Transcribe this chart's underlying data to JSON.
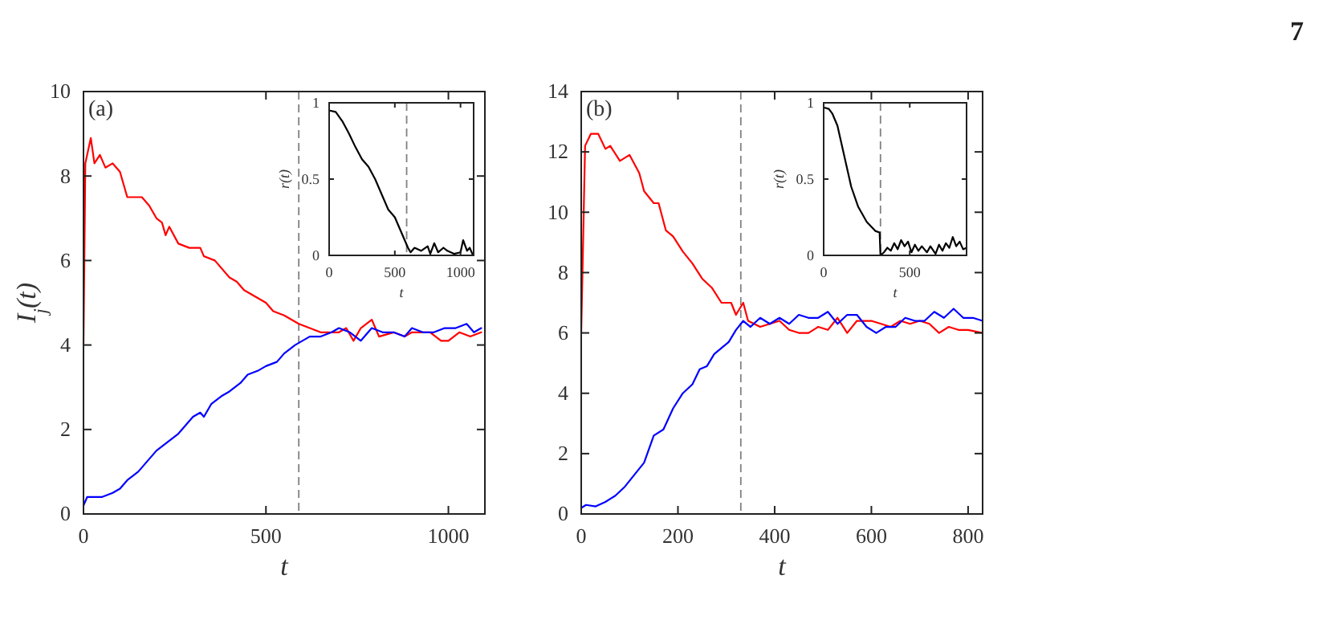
{
  "chart_data": [
    {
      "type": "line",
      "xlabel": "t",
      "ylabel": "I$_{j}$(t)",
      "xlim": [
        0,
        1100
      ],
      "ylim": [
        0,
        10
      ],
      "xticks": [
        0,
        500,
        1000
      ],
      "yticks": [
        0,
        2,
        4,
        6,
        8,
        10
      ],
      "grid": false,
      "annotations": [
        "(a)",
        "7"
      ],
      "ref_lines": [
        {
          "axis": "x",
          "value": 590,
          "color": "#808080",
          "line_style": "dashed"
        }
      ],
      "series": [
        {
          "color": "#ff0000",
          "x": [
            0,
            5,
            20,
            30,
            45,
            60,
            80,
            100,
            120,
            150,
            160,
            180,
            200,
            215,
            225,
            235,
            260,
            290,
            320,
            330,
            360,
            400,
            420,
            440,
            460,
            480,
            500,
            520,
            550,
            590,
            620,
            650,
            700,
            720,
            740,
            760,
            790,
            810,
            850,
            880,
            900,
            950,
            980,
            1000,
            1030,
            1060,
            1090
          ],
          "values": [
            4.0,
            8.3,
            8.9,
            8.3,
            8.5,
            8.2,
            8.3,
            8.1,
            7.5,
            7.5,
            7.5,
            7.3,
            7.0,
            6.9,
            6.6,
            6.8,
            6.4,
            6.3,
            6.3,
            6.1,
            6.0,
            5.6,
            5.5,
            5.3,
            5.2,
            5.1,
            5.0,
            4.8,
            4.7,
            4.5,
            4.4,
            4.3,
            4.3,
            4.4,
            4.1,
            4.4,
            4.6,
            4.2,
            4.3,
            4.2,
            4.3,
            4.3,
            4.1,
            4.1,
            4.3,
            4.2,
            4.3
          ]
        },
        {
          "color": "#0000ff",
          "x": [
            0,
            10,
            30,
            50,
            80,
            100,
            120,
            150,
            180,
            200,
            230,
            260,
            280,
            300,
            320,
            330,
            350,
            380,
            400,
            430,
            450,
            480,
            500,
            530,
            550,
            580,
            600,
            620,
            650,
            680,
            700,
            730,
            760,
            790,
            820,
            850,
            880,
            900,
            930,
            960,
            990,
            1020,
            1050,
            1070,
            1090
          ],
          "values": [
            0.2,
            0.4,
            0.4,
            0.4,
            0.5,
            0.6,
            0.8,
            1.0,
            1.3,
            1.5,
            1.7,
            1.9,
            2.1,
            2.3,
            2.4,
            2.3,
            2.6,
            2.8,
            2.9,
            3.1,
            3.3,
            3.4,
            3.5,
            3.6,
            3.8,
            4.0,
            4.1,
            4.2,
            4.2,
            4.3,
            4.4,
            4.3,
            4.1,
            4.4,
            4.3,
            4.3,
            4.2,
            4.4,
            4.3,
            4.3,
            4.4,
            4.4,
            4.5,
            4.3,
            4.4
          ]
        }
      ]
    },
    {
      "type": "line",
      "xlabel": "t",
      "ylabel": "r(t)",
      "xlim": [
        0,
        1100
      ],
      "ylim": [
        0,
        1
      ],
      "xticks": [
        0,
        500,
        1000
      ],
      "yticks": [
        0,
        0.5,
        1
      ],
      "grid": false,
      "ref_lines": [
        {
          "axis": "x",
          "value": 590,
          "color": "#808080",
          "line_style": "dashed"
        }
      ],
      "series": [
        {
          "color": "#000000",
          "x": [
            0,
            50,
            100,
            150,
            200,
            250,
            300,
            350,
            400,
            450,
            500,
            550,
            600,
            620,
            650,
            700,
            750,
            770,
            800,
            830,
            870,
            900,
            950,
            1000,
            1020,
            1050,
            1070,
            1090
          ],
          "values": [
            0.95,
            0.94,
            0.88,
            0.8,
            0.71,
            0.63,
            0.58,
            0.5,
            0.4,
            0.3,
            0.25,
            0.15,
            0.05,
            0.02,
            0.05,
            0.03,
            0.06,
            0.01,
            0.08,
            0.02,
            0.05,
            0.03,
            0.01,
            0.02,
            0.1,
            0.03,
            0.05,
            0.01
          ]
        }
      ]
    },
    {
      "type": "line",
      "xlabel": "t",
      "xlim": [
        0,
        830
      ],
      "ylim": [
        0,
        14
      ],
      "xticks": [
        0,
        200,
        400,
        600,
        800
      ],
      "yticks": [
        0,
        2,
        4,
        6,
        8,
        10,
        12,
        14
      ],
      "grid": false,
      "annotations": [
        "(b)"
      ],
      "ref_lines": [
        {
          "axis": "x",
          "value": 330,
          "color": "#808080",
          "line_style": "dashed"
        }
      ],
      "series": [
        {
          "color": "#ff0000",
          "x": [
            0,
            8,
            20,
            35,
            50,
            60,
            80,
            100,
            120,
            130,
            150,
            160,
            175,
            190,
            210,
            230,
            250,
            270,
            290,
            310,
            320,
            335,
            345,
            370,
            390,
            410,
            430,
            450,
            470,
            490,
            510,
            530,
            550,
            570,
            600,
            620,
            640,
            660,
            680,
            700,
            720,
            740,
            760,
            780,
            800,
            830
          ],
          "values": [
            6.0,
            12.2,
            12.6,
            12.6,
            12.1,
            12.2,
            11.7,
            11.9,
            11.3,
            10.7,
            10.3,
            10.3,
            9.4,
            9.2,
            8.7,
            8.3,
            7.8,
            7.5,
            7.0,
            7.0,
            6.6,
            7.0,
            6.4,
            6.2,
            6.3,
            6.4,
            6.1,
            6.0,
            6.0,
            6.2,
            6.1,
            6.5,
            6.0,
            6.4,
            6.4,
            6.3,
            6.2,
            6.4,
            6.3,
            6.4,
            6.3,
            6.0,
            6.2,
            6.1,
            6.1,
            6.0
          ]
        },
        {
          "color": "#0000ff",
          "x": [
            0,
            10,
            30,
            50,
            70,
            90,
            110,
            130,
            150,
            170,
            190,
            210,
            230,
            245,
            260,
            275,
            290,
            305,
            320,
            335,
            350,
            370,
            390,
            410,
            430,
            450,
            470,
            490,
            510,
            530,
            550,
            570,
            590,
            610,
            630,
            650,
            670,
            690,
            710,
            730,
            750,
            770,
            790,
            810,
            830
          ],
          "values": [
            0.2,
            0.3,
            0.25,
            0.4,
            0.6,
            0.9,
            1.3,
            1.7,
            2.6,
            2.8,
            3.5,
            4.0,
            4.3,
            4.8,
            4.9,
            5.3,
            5.5,
            5.7,
            6.1,
            6.4,
            6.2,
            6.5,
            6.3,
            6.5,
            6.3,
            6.6,
            6.5,
            6.5,
            6.7,
            6.3,
            6.6,
            6.6,
            6.2,
            6.0,
            6.2,
            6.2,
            6.5,
            6.4,
            6.4,
            6.7,
            6.5,
            6.8,
            6.5,
            6.5,
            6.4
          ]
        }
      ]
    },
    {
      "type": "line",
      "xlabel": "t",
      "ylabel": "r(t)",
      "xlim": [
        0,
        830
      ],
      "ylim": [
        0,
        1
      ],
      "xticks": [
        0,
        500
      ],
      "yticks": [
        0,
        0.5,
        1
      ],
      "grid": false,
      "ref_lines": [
        {
          "axis": "x",
          "value": 330,
          "color": "#808080",
          "line_style": "dashed"
        }
      ],
      "series": [
        {
          "color": "#000000",
          "x": [
            0,
            30,
            50,
            80,
            100,
            130,
            160,
            200,
            250,
            300,
            325,
            330,
            350,
            370,
            390,
            410,
            430,
            450,
            470,
            490,
            510,
            530,
            550,
            570,
            600,
            620,
            650,
            670,
            690,
            710,
            730,
            750,
            770,
            790,
            810,
            830
          ],
          "values": [
            0.97,
            0.96,
            0.93,
            0.85,
            0.75,
            0.6,
            0.45,
            0.32,
            0.22,
            0.16,
            0.15,
            0.0,
            0.02,
            0.05,
            0.03,
            0.08,
            0.04,
            0.1,
            0.06,
            0.09,
            0.02,
            0.07,
            0.03,
            0.06,
            0.02,
            0.06,
            0.01,
            0.07,
            0.03,
            0.08,
            0.05,
            0.12,
            0.06,
            0.09,
            0.04,
            0.05
          ]
        }
      ]
    }
  ]
}
